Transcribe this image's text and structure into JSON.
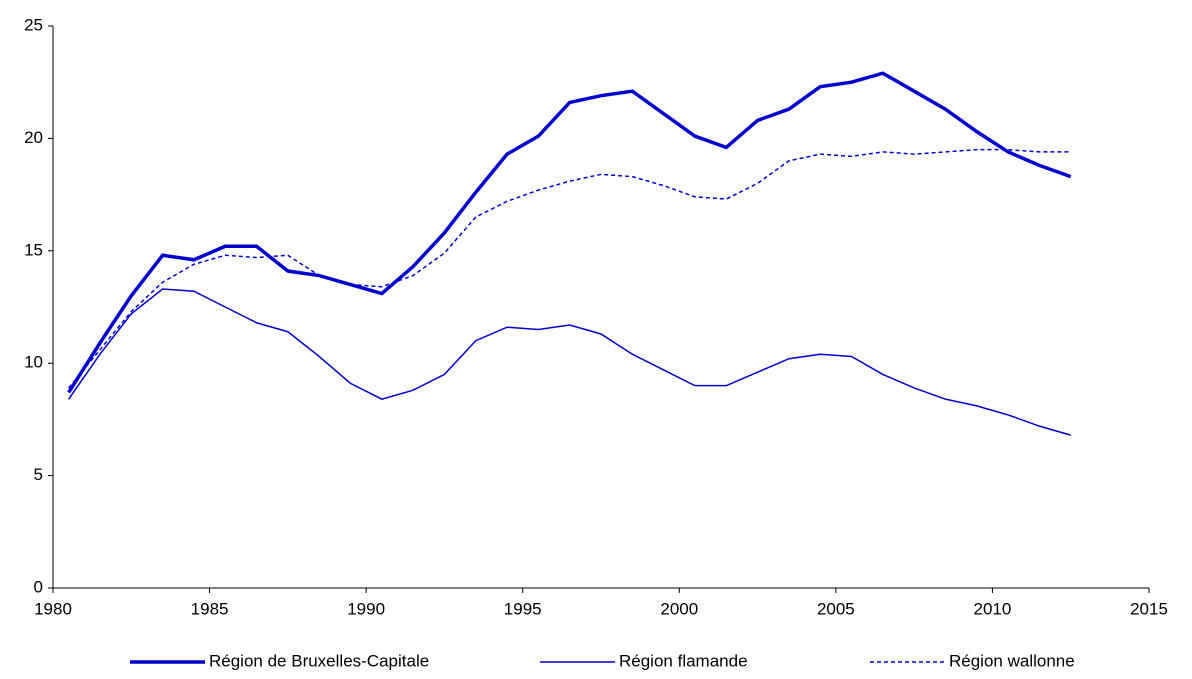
{
  "chart_data": {
    "type": "line",
    "x": [
      1980.5,
      1981.5,
      1982.5,
      1983.5,
      1984.5,
      1985.5,
      1986.5,
      1987.5,
      1988.5,
      1989.5,
      1990.5,
      1991.5,
      1992.5,
      1993.5,
      1994.5,
      1995.5,
      1996.5,
      1997.5,
      1998.5,
      1999.5,
      2000.5,
      2001.5,
      2002.5,
      2003.5,
      2004.5,
      2005.5,
      2006.5,
      2007.5,
      2008.5,
      2009.5,
      2010.5,
      2011.5,
      2012.5
    ],
    "series": [
      {
        "name": "Région de Bruxelles-Capitale",
        "color": "#0000cc",
        "style": "thick",
        "values": [
          8.7,
          10.9,
          13.0,
          14.8,
          14.6,
          15.2,
          15.2,
          14.1,
          13.9,
          13.5,
          13.1,
          14.3,
          15.8,
          17.6,
          19.3,
          20.1,
          21.6,
          21.9,
          22.1,
          21.1,
          20.1,
          19.6,
          20.8,
          21.3,
          22.3,
          22.5,
          22.9,
          22.1,
          21.3,
          20.3,
          19.4,
          18.8,
          18.3
        ]
      },
      {
        "name": "Région flamande",
        "color": "#0000cc",
        "style": "thin",
        "values": [
          8.4,
          10.4,
          12.2,
          13.3,
          13.2,
          12.5,
          11.8,
          11.4,
          10.3,
          9.1,
          8.4,
          8.8,
          9.5,
          11.0,
          11.6,
          11.5,
          11.7,
          11.3,
          10.4,
          9.7,
          9.0,
          9.0,
          9.6,
          10.2,
          10.4,
          10.3,
          9.5,
          8.9,
          8.4,
          8.1,
          7.7,
          7.2,
          6.8
        ]
      },
      {
        "name": "Région wallonne",
        "color": "#0000cc",
        "style": "dotted",
        "values": [
          8.9,
          10.6,
          12.3,
          13.6,
          14.4,
          14.8,
          14.7,
          14.8,
          13.9,
          13.5,
          13.4,
          13.9,
          14.9,
          16.5,
          17.2,
          17.7,
          18.1,
          18.4,
          18.3,
          17.9,
          17.4,
          17.3,
          18.0,
          19.0,
          19.3,
          19.2,
          19.4,
          19.3,
          19.4,
          19.5,
          19.5,
          19.4,
          19.4
        ]
      }
    ],
    "xlim": [
      1980,
      2015
    ],
    "xticks": [
      1980,
      1985,
      1990,
      1995,
      2000,
      2005,
      2010,
      2015
    ],
    "ylim": [
      0,
      25
    ],
    "yticks": [
      0,
      5,
      10,
      15,
      20,
      25
    ]
  }
}
